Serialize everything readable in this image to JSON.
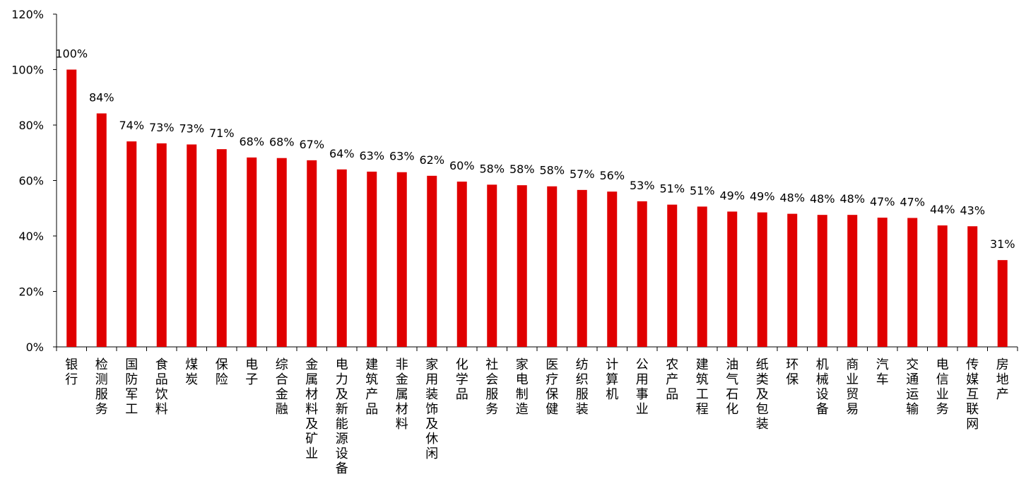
{
  "chart_data": {
    "type": "bar",
    "title": "",
    "xlabel": "",
    "ylabel": "",
    "ylim": [
      0,
      120
    ],
    "yticks": [
      "0%",
      "20%",
      "40%",
      "60%",
      "80%",
      "100%",
      "120%"
    ],
    "bar_color": "#e00000",
    "grid": false,
    "categories": [
      "银行",
      "检测服务",
      "国防军工",
      "食品饮料",
      "煤炭",
      "保险",
      "电子",
      "综合金融",
      "金属材料及矿业",
      "电力及新能源设备",
      "建筑产品",
      "非金属材料",
      "家用装饰及休闲",
      "化学品",
      "社会服务",
      "家电制造",
      "医疗保健",
      "纺织服装",
      "计算机",
      "公用事业",
      "农产品",
      "建筑工程",
      "油气石化",
      "纸类及包装",
      "环保",
      "机械设备",
      "商业贸易",
      "汽车",
      "交通运输",
      "电信业务",
      "传媒互联网",
      "房地产"
    ],
    "values": [
      100,
      84.2,
      74.1,
      73.4,
      73.0,
      71.3,
      68.3,
      68.1,
      67.3,
      64.0,
      63.2,
      63.0,
      61.7,
      59.6,
      58.5,
      58.3,
      57.9,
      56.6,
      56.0,
      52.5,
      51.3,
      50.6,
      48.8,
      48.5,
      48.0,
      47.6,
      47.6,
      46.6,
      46.5,
      43.8,
      43.5,
      31.3
    ],
    "labels": [
      "100%",
      "84%",
      "74%",
      "73%",
      "73%",
      "71%",
      "68%",
      "68%",
      "67%",
      "64%",
      "63%",
      "63%",
      "62%",
      "60%",
      "58%",
      "58%",
      "58%",
      "57%",
      "56%",
      "53%",
      "51%",
      "51%",
      "49%",
      "49%",
      "48%",
      "48%",
      "48%",
      "47%",
      "47%",
      "44%",
      "43%",
      "31%"
    ]
  }
}
